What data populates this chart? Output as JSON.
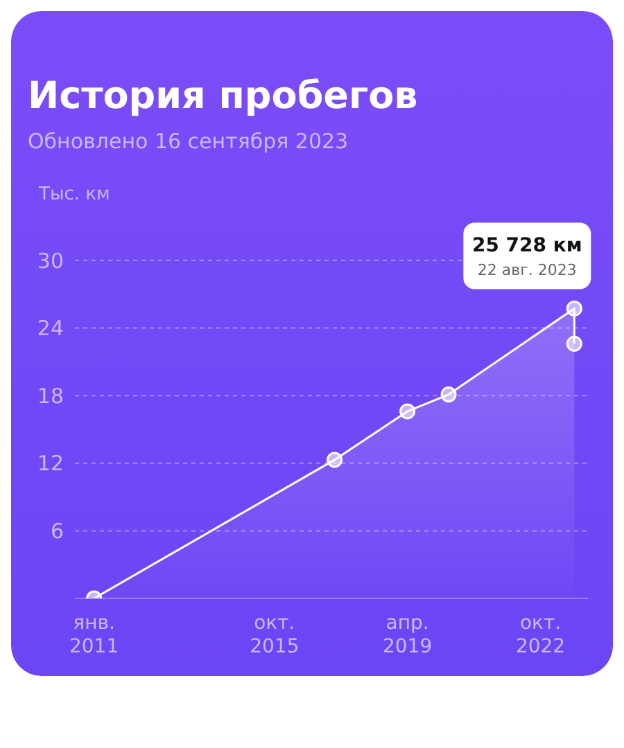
{
  "chart_data": {
    "type": "area",
    "title": "История пробегов",
    "subtitle": "Обновлено 16 сентября 2023",
    "ylabel": "Тыс. км",
    "x": [
      "2011-01-01",
      "2017-05-01",
      "2019-04-01",
      "2020-05-01",
      "2023-08-22",
      "2023-08-22"
    ],
    "series": [
      {
        "color": "#ffffff",
        "values": [
          0,
          12.3,
          16.6,
          18.1,
          25.728,
          22.6
        ]
      }
    ],
    "ylim": [
      0,
      30
    ],
    "yticks": [
      6,
      12,
      18,
      24,
      30
    ],
    "xlim": [
      "2010-07-01",
      "2023-12-31"
    ],
    "xticks": [
      {
        "value": "2011-01-01",
        "label": "янв. 2011"
      },
      {
        "value": "2015-10-01",
        "label": "окт. 2015"
      },
      {
        "value": "2019-04-01",
        "label": "апр. 2019"
      },
      {
        "value": "2022-10-01",
        "label": "окт. 2022"
      }
    ],
    "annotations": [
      {
        "text": "25 728 км",
        "x": "2023-08-22",
        "y": 25.728
      },
      "22 авг. 2023"
    ],
    "grid": "y",
    "marker": "circle"
  }
}
